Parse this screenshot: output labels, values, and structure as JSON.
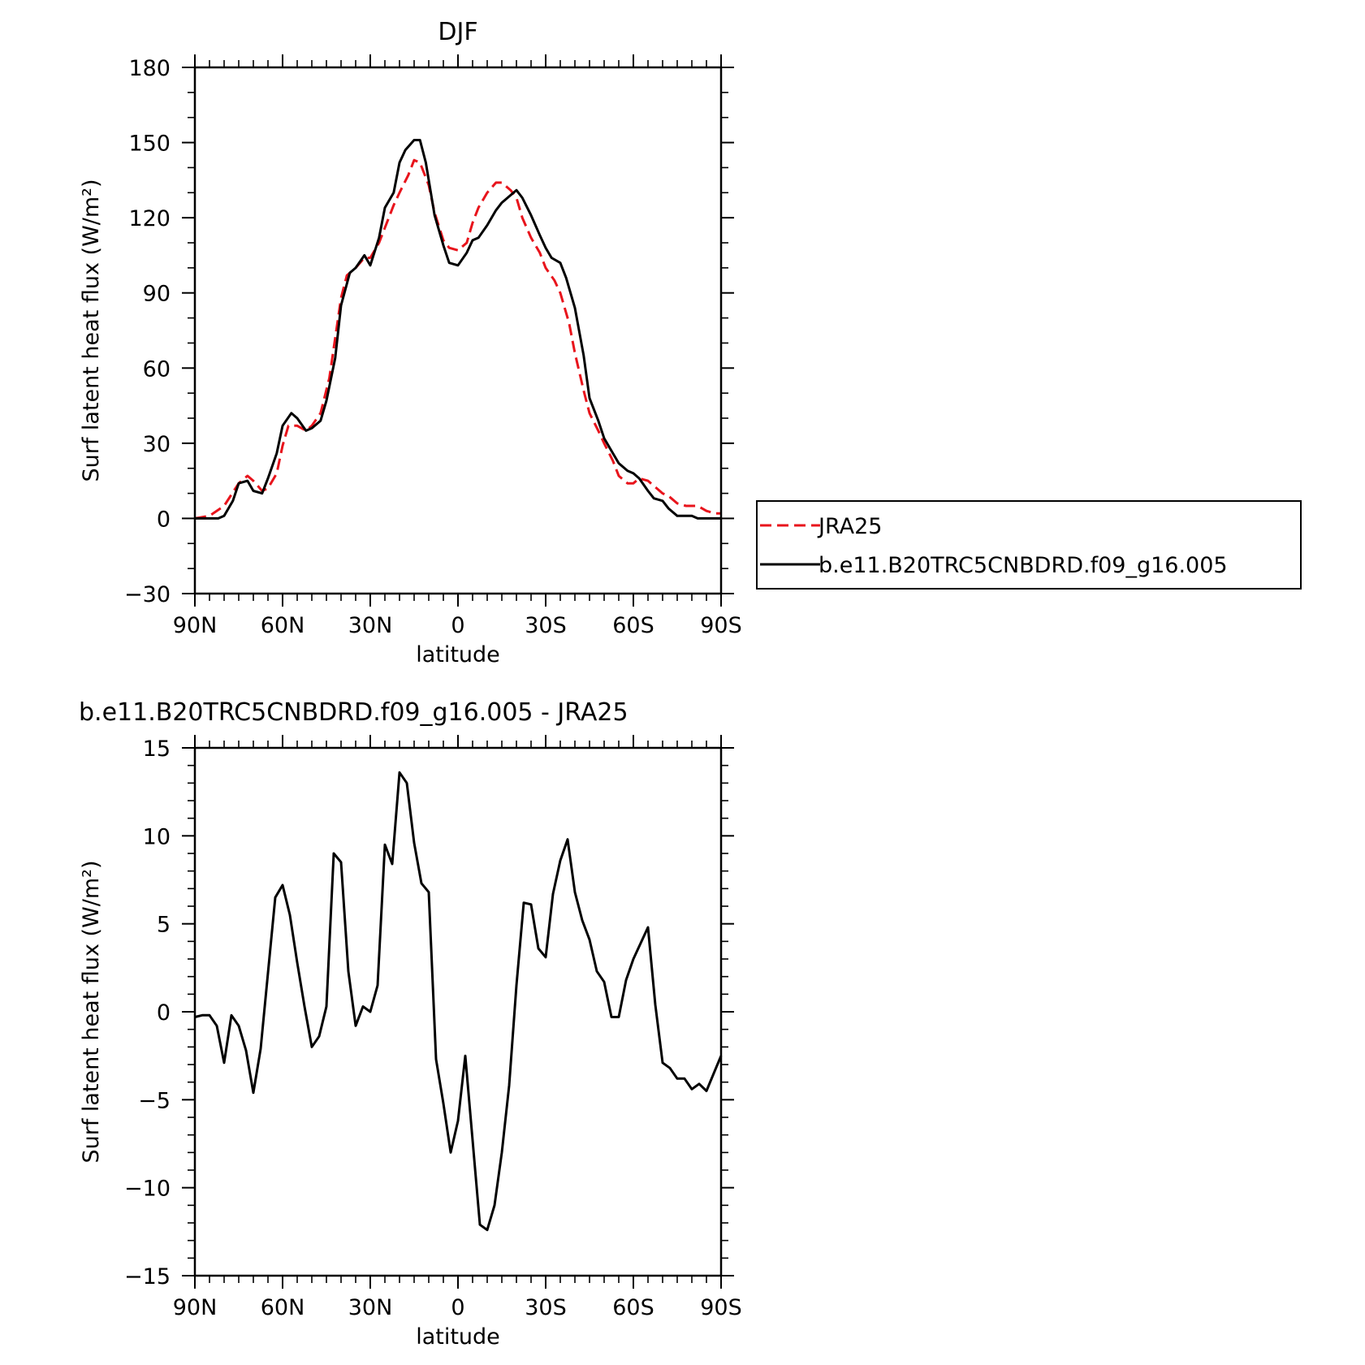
{
  "chart_data": [
    {
      "type": "line",
      "title": "DJF",
      "xlabel": "latitude",
      "ylabel": "Surf latent heat flux (W/m²)",
      "ylim": [
        -30,
        180
      ],
      "xlim": [
        90,
        -90
      ],
      "yticks": [
        -30,
        0,
        30,
        60,
        90,
        120,
        150,
        180
      ],
      "xticks": [
        90,
        60,
        30,
        0,
        -30,
        -60,
        -90
      ],
      "xtick_labels": [
        "90N",
        "60N",
        "30N",
        "0",
        "30S",
        "60S",
        "90S"
      ],
      "legend": "right",
      "series": [
        {
          "name": "JRA25",
          "color": "#e8141c",
          "dash": "dashed",
          "x": [
            90,
            85,
            80,
            75,
            72,
            70,
            67,
            65,
            62,
            60,
            58,
            55,
            52,
            50,
            47,
            44,
            42,
            40,
            38,
            35,
            32,
            30,
            27,
            25,
            22,
            20,
            17,
            15,
            13,
            10,
            8,
            5,
            3,
            0,
            -3,
            -5,
            -7,
            -10,
            -13,
            -15,
            -18,
            -20,
            -22,
            -25,
            -28,
            -30,
            -33,
            -35,
            -38,
            -40,
            -43,
            -45,
            -48,
            -50,
            -53,
            -55,
            -58,
            -60,
            -62,
            -65,
            -67,
            -70,
            -72,
            -75,
            -78,
            -80,
            -82,
            -85,
            -88,
            -90
          ],
          "y": [
            0,
            1,
            5,
            14,
            17,
            15,
            11,
            12,
            18,
            29,
            37,
            37,
            35,
            37,
            42,
            56,
            72,
            88,
            97,
            100,
            104,
            104,
            110,
            116,
            125,
            130,
            137,
            143,
            142,
            133,
            122,
            111,
            108,
            107,
            110,
            118,
            124,
            130,
            134,
            134,
            131,
            128,
            120,
            112,
            106,
            100,
            95,
            90,
            78,
            66,
            51,
            42,
            35,
            30,
            23,
            17,
            14,
            14,
            16,
            15,
            13,
            10,
            9,
            6,
            5,
            5,
            5,
            3,
            2,
            2
          ]
        },
        {
          "name": "b.e11.B20TRC5CNBDRD.f09_g16.005",
          "color": "#000000",
          "dash": "solid",
          "x": [
            90,
            85,
            82,
            80,
            77,
            75,
            72,
            70,
            67,
            65,
            62,
            60,
            57,
            55,
            52,
            50,
            47,
            45,
            42,
            40,
            37,
            35,
            32,
            30,
            27,
            25,
            22,
            20,
            18,
            15,
            13,
            11,
            8,
            5,
            3,
            0,
            -3,
            -5,
            -7,
            -10,
            -13,
            -15,
            -18,
            -20,
            -22,
            -25,
            -28,
            -30,
            -32,
            -35,
            -37,
            -40,
            -43,
            -45,
            -48,
            -50,
            -53,
            -55,
            -58,
            -60,
            -62,
            -65,
            -67,
            -70,
            -72,
            -75,
            -78,
            -80,
            -82,
            -85,
            -88,
            -90
          ],
          "y": [
            0,
            0,
            0,
            1,
            7,
            14,
            15,
            11,
            10,
            16,
            26,
            37,
            42,
            40,
            35,
            36,
            39,
            47,
            64,
            85,
            98,
            100,
            105,
            101,
            112,
            124,
            130,
            142,
            147,
            151,
            151,
            142,
            121,
            109,
            102,
            101,
            106,
            111,
            112,
            117,
            123,
            126,
            129,
            131,
            128,
            121,
            113,
            108,
            104,
            102,
            96,
            84,
            65,
            48,
            39,
            32,
            26,
            22,
            19,
            18,
            16,
            11,
            8,
            7,
            4,
            1,
            1,
            1,
            0,
            0,
            0,
            0
          ]
        }
      ]
    },
    {
      "type": "line",
      "title": "b.e11.B20TRC5CNBDRD.f09_g16.005 - JRA25",
      "xlabel": "latitude",
      "ylabel": "Surf latent heat flux (W/m²)",
      "ylim": [
        -15,
        15
      ],
      "xlim": [
        90,
        -90
      ],
      "yticks": [
        -15,
        -10,
        -5,
        0,
        5,
        10,
        15
      ],
      "xticks": [
        90,
        60,
        30,
        0,
        -30,
        -60,
        -90
      ],
      "xtick_labels": [
        "90N",
        "60N",
        "30N",
        "0",
        "30S",
        "60S",
        "90S"
      ],
      "series": [
        {
          "color": "#000000",
          "dash": "solid",
          "x": [
            90,
            87.5,
            85,
            82.5,
            80,
            77.5,
            75,
            72.5,
            70,
            67.5,
            65,
            62.5,
            60,
            57.5,
            55,
            52.5,
            50,
            47.5,
            45,
            42.5,
            40,
            37.5,
            35,
            32.5,
            30,
            27.5,
            25,
            22.5,
            20,
            17.5,
            15,
            12.5,
            10,
            7.5,
            5,
            2.5,
            0,
            -2.5,
            -5,
            -7.5,
            -10,
            -12.5,
            -15,
            -17.5,
            -20,
            -22.5,
            -25,
            -27.5,
            -30,
            -32.5,
            -35,
            -37.5,
            -40,
            -42.5,
            -45,
            -47.5,
            -50,
            -52.5,
            -55,
            -57.5,
            -60,
            -62.5,
            -65,
            -67.5,
            -70,
            -72.5,
            -75,
            -77.5,
            -80,
            -82.5,
            -85,
            -87.5,
            -90
          ],
          "y": [
            -0.3,
            -0.2,
            -0.2,
            -0.8,
            -2.9,
            -0.2,
            -0.8,
            -2.2,
            -4.6,
            -2.1,
            2.2,
            6.5,
            7.2,
            5.5,
            2.8,
            0.3,
            -2.0,
            -1.4,
            0.3,
            9.0,
            8.5,
            2.3,
            -0.8,
            0.3,
            0.0,
            1.5,
            9.5,
            8.4,
            13.6,
            13.0,
            9.6,
            7.3,
            6.8,
            -2.7,
            -5.2,
            -8.0,
            -6.2,
            -2.5,
            -7.3,
            -12.1,
            -12.4,
            -11.0,
            -8.0,
            -4.2,
            1.5,
            6.2,
            6.1,
            3.6,
            3.1,
            6.7,
            8.6,
            9.8,
            6.8,
            5.2,
            4.1,
            2.3,
            1.7,
            -0.3,
            -0.3,
            1.8,
            3.0,
            3.9,
            4.8,
            0.4,
            -2.9,
            -3.2,
            -3.8,
            -3.8,
            -4.4,
            -4.1,
            -4.5,
            -3.5,
            -2.5
          ]
        }
      ]
    }
  ]
}
